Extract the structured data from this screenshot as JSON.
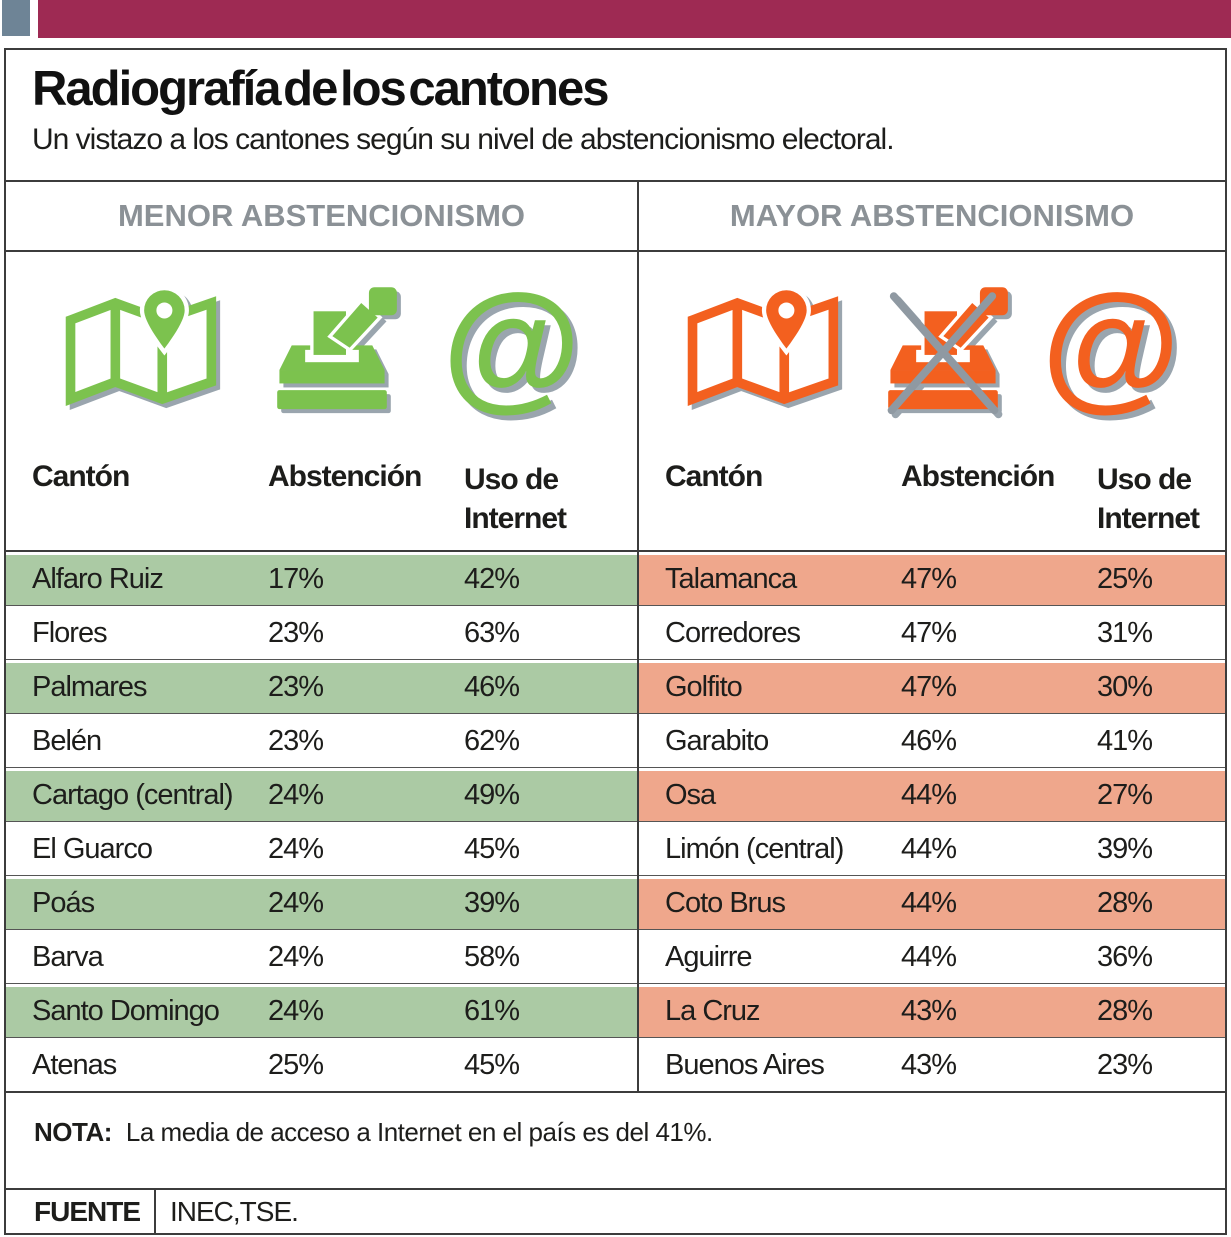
{
  "masthead": {
    "accent_square_color": "#6e8496",
    "bar_color": "#9e2a53"
  },
  "header": {
    "title": "Radiografía de los cantones",
    "subtitle": "Un vistazo a los cantones según su nivel de abstencionismo electoral."
  },
  "colors": {
    "menor_icon": "#7cc24e",
    "menor_row_highlight": "#abcaa4",
    "mayor_icon": "#f3601f",
    "mayor_row_highlight": "#efa78c",
    "heading_gray": "#8b9196",
    "icon_shadow": "#9aa5ae",
    "border": "#3c3c3c"
  },
  "panels": [
    {
      "heading": "MENOR ABSTENCIONISMO",
      "icons": [
        "map-pin-icon",
        "ballot-box-icon",
        "at-sign-icon"
      ],
      "columns": [
        "Cantón",
        "Abstención",
        "Uso de Internet"
      ],
      "rows": [
        [
          "Alfaro Ruiz",
          "17%",
          "42%"
        ],
        [
          "Flores",
          "23%",
          "63%"
        ],
        [
          "Palmares",
          "23%",
          "46%"
        ],
        [
          "Belén",
          "23%",
          "62%"
        ],
        [
          "Cartago (central)",
          "24%",
          "49%"
        ],
        [
          "El Guarco",
          "24%",
          "45%"
        ],
        [
          "Poás",
          "24%",
          "39%"
        ],
        [
          "Barva",
          "24%",
          "58%"
        ],
        [
          "Santo Domingo",
          "24%",
          "61%"
        ],
        [
          "Atenas",
          "25%",
          "45%"
        ]
      ]
    },
    {
      "heading": "MAYOR ABSTENCIONISMO",
      "icons": [
        "map-pin-icon",
        "ballot-box-crossed-icon",
        "at-sign-icon"
      ],
      "columns": [
        "Cantón",
        "Abstención",
        "Uso de Internet"
      ],
      "rows": [
        [
          "Talamanca",
          "47%",
          "25%"
        ],
        [
          "Corredores",
          "47%",
          "31%"
        ],
        [
          "Golfito",
          "47%",
          "30%"
        ],
        [
          "Garabito",
          "46%",
          "41%"
        ],
        [
          "Osa",
          "44%",
          "27%"
        ],
        [
          "Limón (central)",
          "44%",
          "39%"
        ],
        [
          "Coto Brus",
          "44%",
          "28%"
        ],
        [
          "Aguirre",
          "44%",
          "36%"
        ],
        [
          "La Cruz",
          "43%",
          "28%"
        ],
        [
          "Buenos Aires",
          "43%",
          "23%"
        ]
      ]
    }
  ],
  "at_glyph": "@",
  "note": {
    "label": "NOTA:",
    "text": "La media de acceso a Internet en el país es del 41%."
  },
  "source": {
    "label": "FUENTE",
    "text": "INEC,TSE."
  },
  "chart_data": [
    {
      "type": "table",
      "title": "MENOR ABSTENCIONISMO",
      "columns": [
        "Cantón",
        "Abstención",
        "Uso de Internet"
      ],
      "rows": [
        [
          "Alfaro Ruiz",
          "17%",
          "42%"
        ],
        [
          "Flores",
          "23%",
          "63%"
        ],
        [
          "Palmares",
          "23%",
          "46%"
        ],
        [
          "Belén",
          "23%",
          "62%"
        ],
        [
          "Cartago (central)",
          "24%",
          "49%"
        ],
        [
          "El Guarco",
          "24%",
          "45%"
        ],
        [
          "Poás",
          "24%",
          "39%"
        ],
        [
          "Barva",
          "24%",
          "58%"
        ],
        [
          "Santo Domingo",
          "24%",
          "61%"
        ],
        [
          "Atenas",
          "25%",
          "45%"
        ]
      ]
    },
    {
      "type": "table",
      "title": "MAYOR ABSTENCIONISMO",
      "columns": [
        "Cantón",
        "Abstención",
        "Uso de Internet"
      ],
      "rows": [
        [
          "Talamanca",
          "47%",
          "25%"
        ],
        [
          "Corredores",
          "47%",
          "31%"
        ],
        [
          "Golfito",
          "47%",
          "30%"
        ],
        [
          "Garabito",
          "46%",
          "41%"
        ],
        [
          "Osa",
          "44%",
          "27%"
        ],
        [
          "Limón (central)",
          "44%",
          "39%"
        ],
        [
          "Coto Brus",
          "44%",
          "28%"
        ],
        [
          "Aguirre",
          "44%",
          "36%"
        ],
        [
          "La Cruz",
          "43%",
          "28%"
        ],
        [
          "Buenos Aires",
          "43%",
          "23%"
        ]
      ]
    }
  ]
}
